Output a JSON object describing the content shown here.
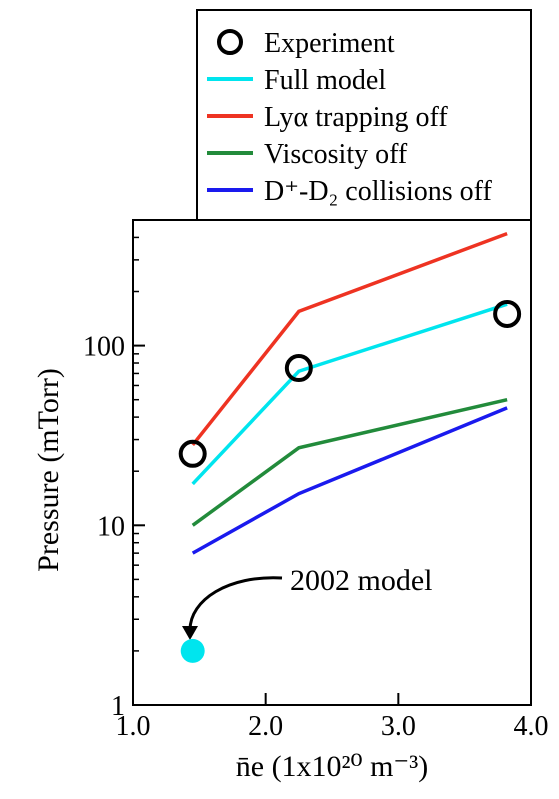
{
  "chart_data": {
    "type": "line",
    "xlabel": "n̄e (1x10²⁰ m⁻³)",
    "ylabel": "Pressure (mTorr)",
    "xlim": [
      1.0,
      4.0
    ],
    "ylim": [
      1,
      500
    ],
    "y_scale": "log",
    "x_ticks": [
      1.0,
      2.0,
      3.0,
      4.0
    ],
    "x_tick_labels": [
      "1.0",
      "2.0",
      "3.0",
      "4.0"
    ],
    "y_ticks": [
      1,
      10,
      100
    ],
    "y_tick_labels": [
      "1",
      "10",
      "100"
    ],
    "legend_position": "top-right",
    "series": [
      {
        "name": "Experiment",
        "kind": "marker",
        "color": "#000000",
        "x": [
          1.45,
          2.25,
          3.82
        ],
        "y": [
          25,
          75,
          150
        ]
      },
      {
        "name": "Full model",
        "kind": "line",
        "color": "#00e5ee",
        "x": [
          1.45,
          2.25,
          3.82
        ],
        "y": [
          17,
          72,
          170
        ]
      },
      {
        "name": "Lyα trapping off",
        "kind": "line",
        "color": "#ee3322",
        "x": [
          1.45,
          2.25,
          3.82
        ],
        "y": [
          28,
          155,
          420
        ]
      },
      {
        "name": "Viscosity off",
        "kind": "line",
        "color": "#228b3b",
        "x": [
          1.45,
          2.25,
          3.82
        ],
        "y": [
          10,
          27,
          50
        ]
      },
      {
        "name": "D⁺-D₂ collisions off",
        "kind": "line",
        "color": "#1a1aee",
        "x": [
          1.45,
          2.25,
          3.82
        ],
        "y": [
          7,
          15,
          45
        ]
      }
    ],
    "annotation": {
      "text": "2002 model",
      "point": {
        "x": 1.45,
        "y": 2.0,
        "color": "#00e5ee"
      }
    }
  }
}
